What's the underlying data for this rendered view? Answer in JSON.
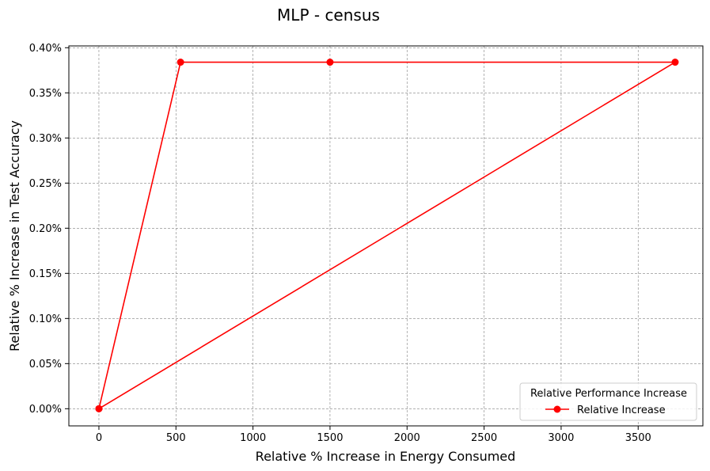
{
  "chart_data": {
    "type": "line",
    "title": "MLP - census",
    "xlabel": "Relative % Increase in Energy Consumed",
    "ylabel": "Relative % Increase in Test Accuracy",
    "xlim": [
      -195,
      3920
    ],
    "ylim": [
      -0.019,
      0.402
    ],
    "xticks": [
      0,
      500,
      1000,
      1500,
      2000,
      2500,
      3000,
      3500
    ],
    "xtick_labels": [
      "0",
      "500",
      "1000",
      "1500",
      "2000",
      "2500",
      "3000",
      "3500"
    ],
    "yticks": [
      0.0,
      0.05,
      0.1,
      0.15,
      0.2,
      0.25,
      0.3,
      0.35,
      0.4
    ],
    "ytick_labels": [
      "0.00%",
      "0.05%",
      "0.10%",
      "0.15%",
      "0.20%",
      "0.25%",
      "0.30%",
      "0.35%",
      "0.40%"
    ],
    "grid": true,
    "legend": {
      "title": "Relative Performance Increase",
      "position": "lower-right"
    },
    "series": [
      {
        "name": "Relative Increase",
        "color": "#ff0000",
        "marker": "circle",
        "x": [
          0,
          530,
          1500,
          3740,
          0
        ],
        "y": [
          0.0,
          0.384,
          0.384,
          0.384,
          0.0
        ]
      }
    ]
  }
}
